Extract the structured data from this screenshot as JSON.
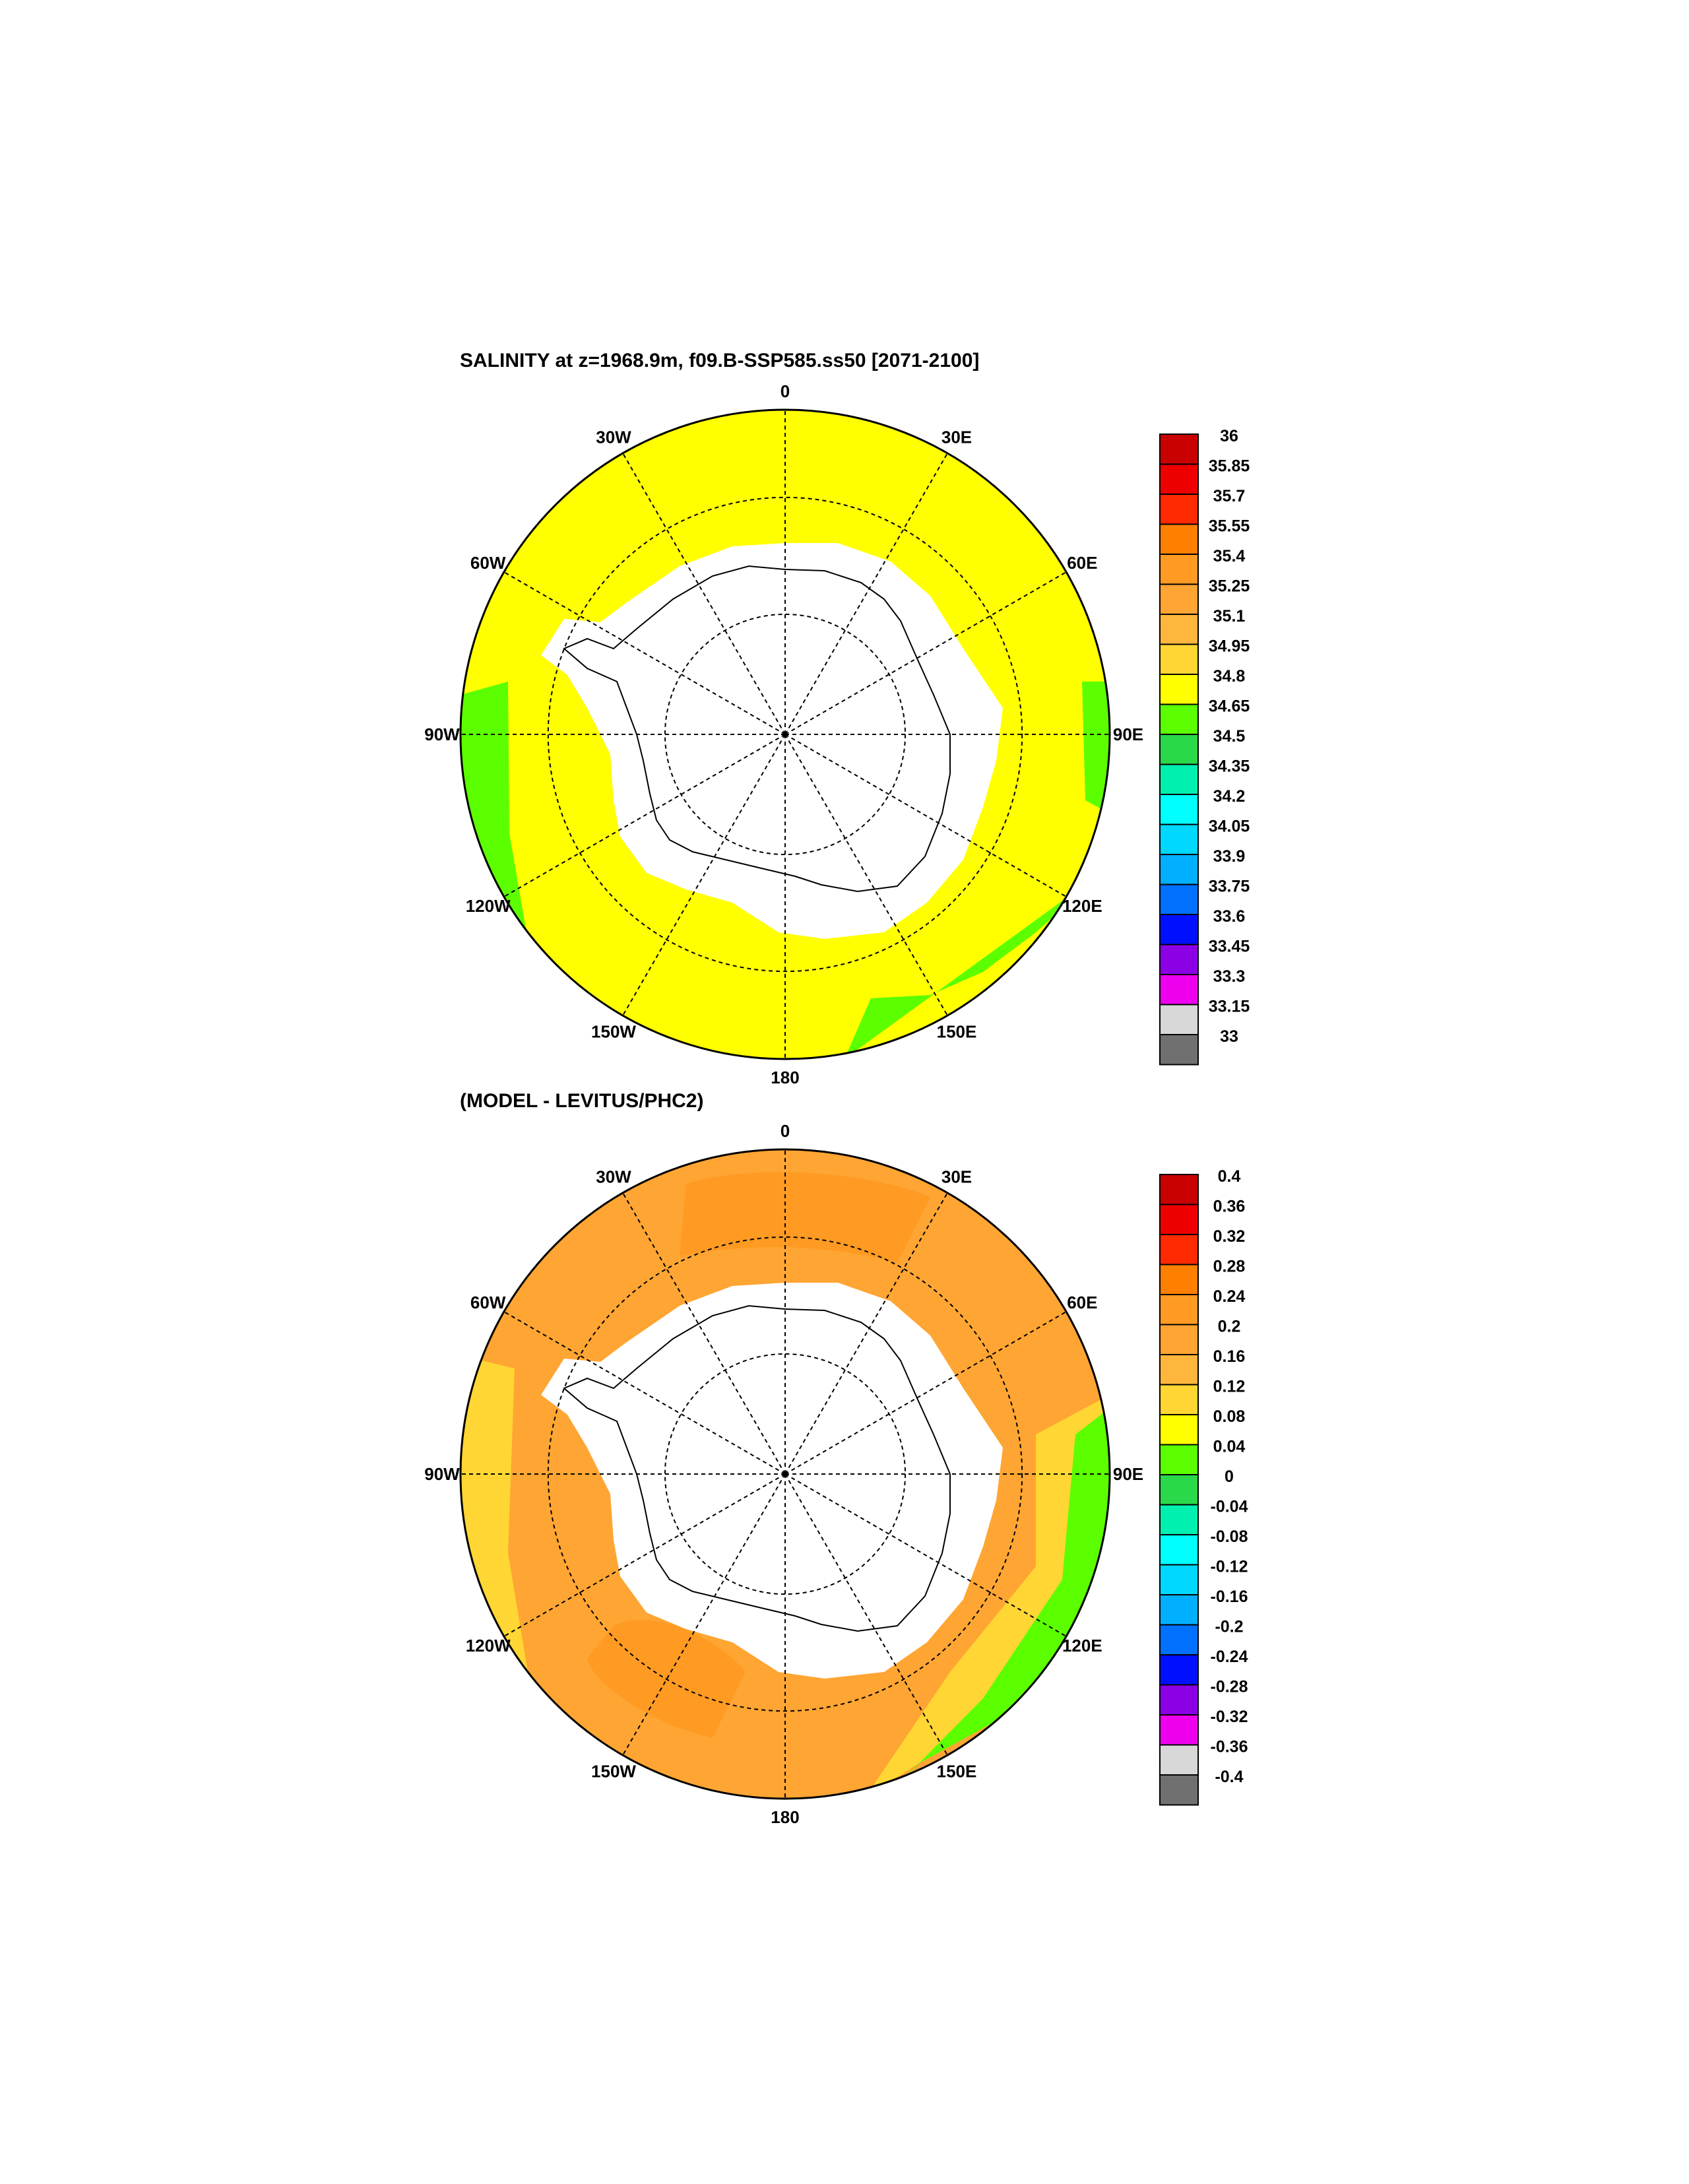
{
  "panels": [
    {
      "title": "SALINITY at z=1968.9m, f09.B-SSP585.ss50 [2071-2100]",
      "colorbar_labels": [
        "36",
        "35.85",
        "35.7",
        "35.55",
        "35.4",
        "35.25",
        "35.1",
        "34.95",
        "34.8",
        "34.65",
        "34.5",
        "34.35",
        "34.2",
        "34.05",
        "33.9",
        "33.75",
        "33.6",
        "33.45",
        "33.3",
        "33.15",
        "33"
      ],
      "dominant_color": "#ffff00"
    },
    {
      "title": "(MODEL - LEVITUS/PHC2)",
      "colorbar_labels": [
        "0.4",
        "0.36",
        "0.32",
        "0.28",
        "0.24",
        "0.2",
        "0.16",
        "0.12",
        "0.08",
        "0.04",
        "0",
        "-0.04",
        "-0.08",
        "-0.12",
        "-0.16",
        "-0.2",
        "-0.24",
        "-0.28",
        "-0.32",
        "-0.36",
        "-0.4"
      ],
      "dominant_color": "#ffa533"
    }
  ],
  "colorbar_colors": [
    "#c80000",
    "#ee0000",
    "#ff2a00",
    "#ff7f00",
    "#ff9a22",
    "#ffa533",
    "#ffb63c",
    "#ffd633",
    "#ffff00",
    "#5cff00",
    "#2ad84a",
    "#00f0b0",
    "#00ffff",
    "#00d8ff",
    "#00b0ff",
    "#0070ff",
    "#0010ff",
    "#8c00e6",
    "#ee00ee",
    "#d8d8d8",
    "#707070"
  ],
  "longitude_labels": [
    "0",
    "30E",
    "60E",
    "90E",
    "120E",
    "150E",
    "180",
    "150W",
    "120W",
    "90W",
    "60W",
    "30W"
  ]
}
